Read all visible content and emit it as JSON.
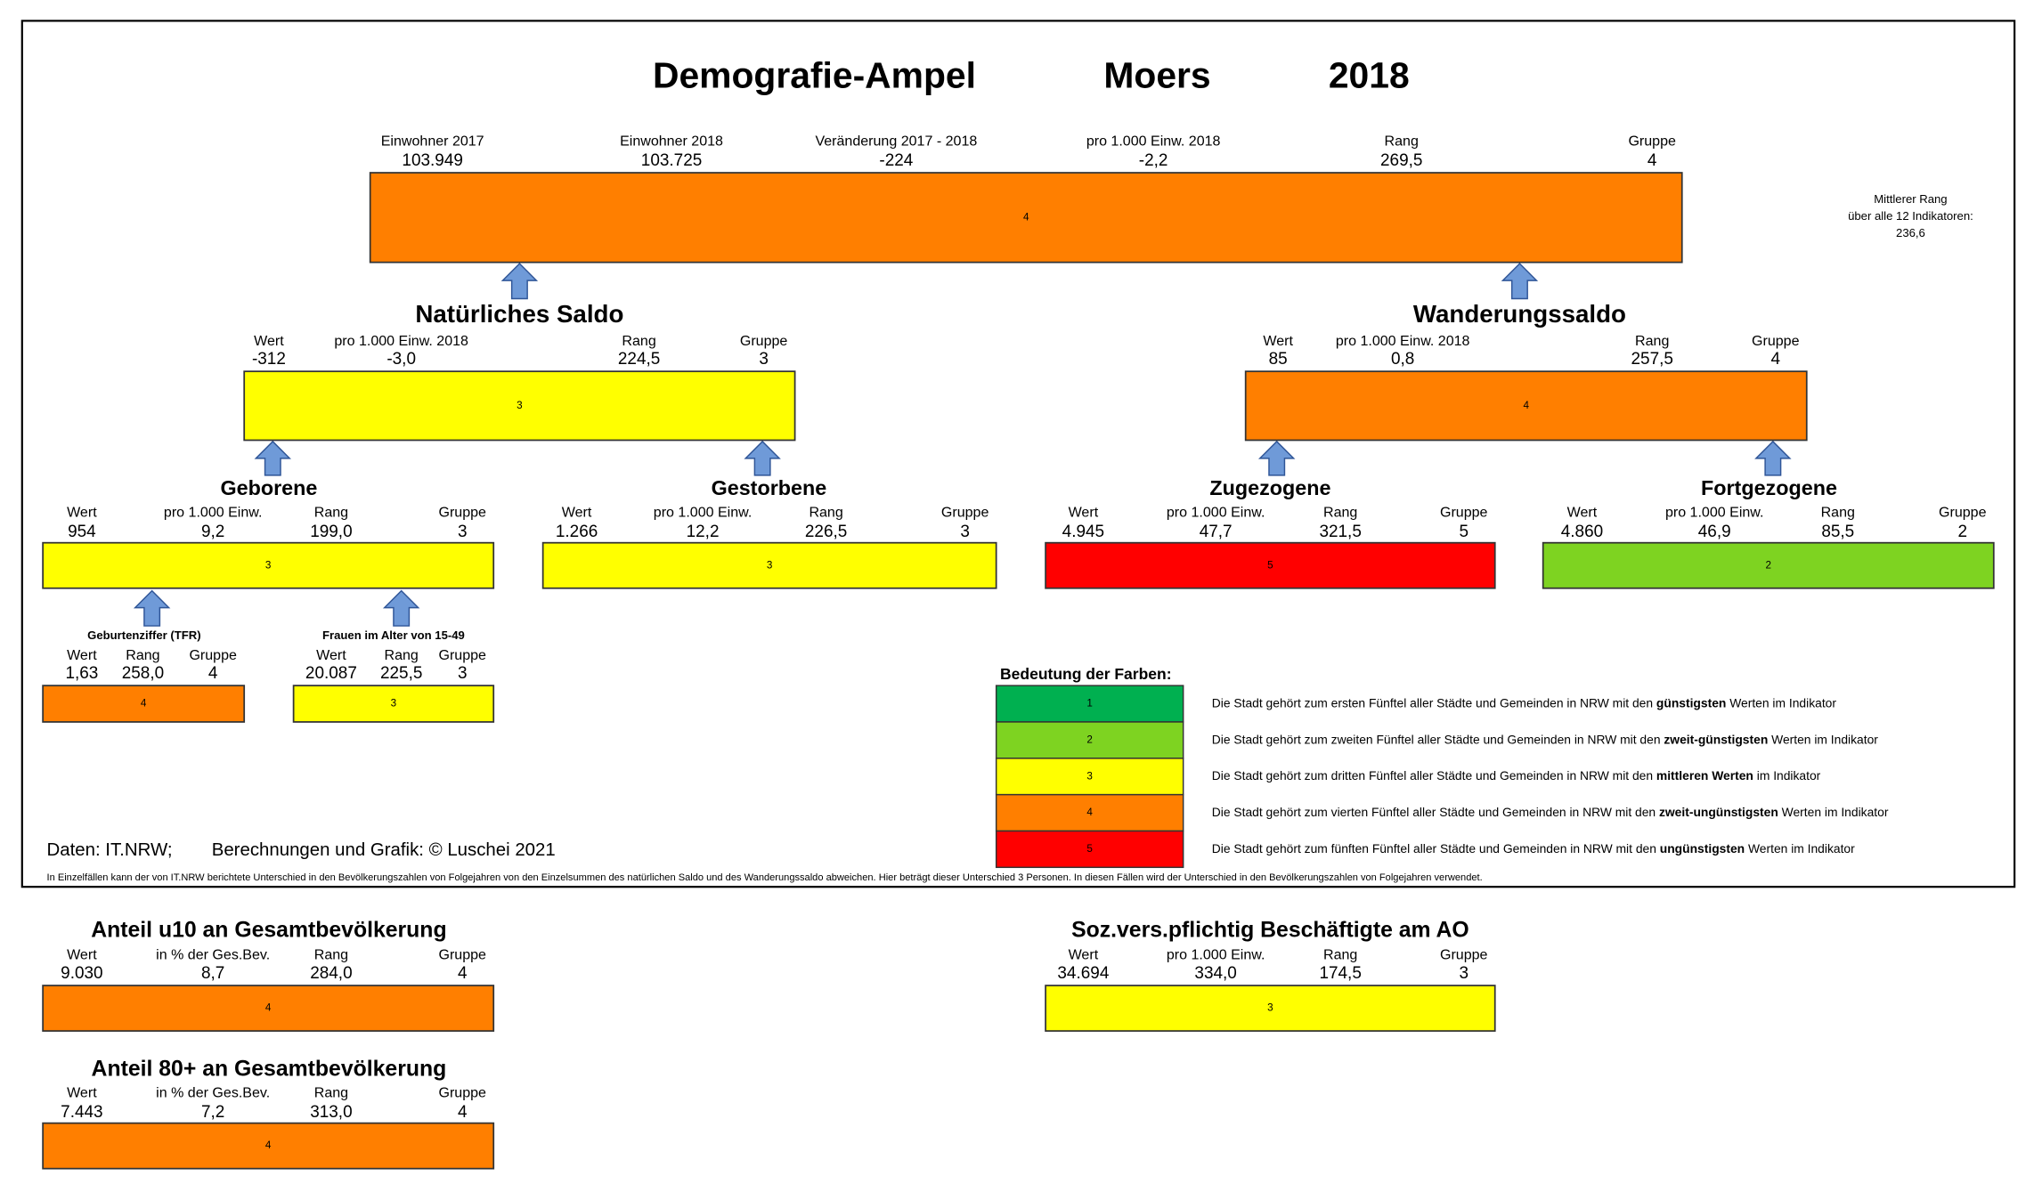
{
  "header": {
    "title": "Demografie-Ampel",
    "city": "Moers",
    "year": "2018"
  },
  "summary": {
    "fields": [
      {
        "label": "Einwohner 2017",
        "value": "103.949"
      },
      {
        "label": "Einwohner 2018",
        "value": "103.725"
      },
      {
        "label": "Veränderung 2017 - 2018",
        "value": "-224",
        "color": "#ff0000"
      },
      {
        "label": "pro 1.000 Einw. 2018",
        "value": "-2,2"
      },
      {
        "label": "Rang",
        "value": "269,5"
      },
      {
        "label": "Gruppe",
        "value": "4"
      }
    ],
    "note": [
      "Mittlerer Rang",
      "über alle 12 Indikatoren:",
      "236,6"
    ]
  },
  "components": [
    {
      "title": "Natürliches Saldo",
      "fields": [
        {
          "label": "Wert",
          "value": "-312",
          "color": "#ff0000"
        },
        {
          "label": "pro 1.000 Einw. 2018",
          "value": "-3,0",
          "color": "#ff0000"
        },
        {
          "label": "Rang",
          "value": "224,5"
        },
        {
          "label": "Gruppe",
          "value": "3"
        }
      ]
    },
    {
      "title": "Wanderungssaldo",
      "fields": [
        {
          "label": "Wert",
          "value": "85"
        },
        {
          "label": "pro 1.000 Einw. 2018",
          "value": "0,8"
        },
        {
          "label": "Rang",
          "value": "257,5"
        },
        {
          "label": "Gruppe",
          "value": "4"
        }
      ]
    }
  ],
  "details": [
    {
      "title": "Geborene",
      "fields": [
        {
          "label": "Wert",
          "value": "954"
        },
        {
          "label": "pro 1.000 Einw.",
          "value": "9,2"
        },
        {
          "label": "Rang",
          "value": "199,0"
        },
        {
          "label": "Gruppe",
          "value": "3"
        }
      ]
    },
    {
      "title": "Gestorbene",
      "fields": [
        {
          "label": "Wert",
          "value": "1.266"
        },
        {
          "label": "pro 1.000 Einw.",
          "value": "12,2"
        },
        {
          "label": "Rang",
          "value": "226,5"
        },
        {
          "label": "Gruppe",
          "value": "3"
        }
      ]
    },
    {
      "title": "Zugezogene",
      "fields": [
        {
          "label": "Wert",
          "value": "4.945"
        },
        {
          "label": "pro 1.000 Einw.",
          "value": "47,7"
        },
        {
          "label": "Rang",
          "value": "321,5"
        },
        {
          "label": "Gruppe",
          "value": "5"
        }
      ]
    },
    {
      "title": "Fortgezogene",
      "fields": [
        {
          "label": "Wert",
          "value": "4.860"
        },
        {
          "label": "pro 1.000 Einw.",
          "value": "46,9"
        },
        {
          "label": "Rang",
          "value": "85,5"
        },
        {
          "label": "Gruppe",
          "value": "2"
        }
      ]
    }
  ],
  "subdetails": [
    {
      "title": "Geburtenziffer (TFR)",
      "fields": [
        {
          "label": "Wert",
          "value": "1,63"
        },
        {
          "label": "Rang",
          "value": "258,0"
        },
        {
          "label": "Gruppe",
          "value": "4"
        }
      ]
    },
    {
      "title": "Frauen im Alter von 15-49",
      "fields": [
        {
          "label": "Wert",
          "value": "20.087"
        },
        {
          "label": "Rang",
          "value": "225,5"
        },
        {
          "label": "Gruppe",
          "value": "3"
        }
      ]
    }
  ],
  "legend": {
    "title": "Bedeutung der Farben:",
    "items": [
      {
        "group": "1",
        "color": "#00b050",
        "pre": "Die Stadt gehört zum ersten Fünftel aller Städte und Gemeinden in NRW mit den ",
        "bold": "günstigsten",
        "post": " Werten im Indikator"
      },
      {
        "group": "2",
        "color": "#7ed321",
        "pre": "Die Stadt gehört zum zweiten Fünftel aller Städte und Gemeinden in NRW mit den ",
        "bold": "zweit-günstigsten",
        "post": " Werten im Indikator"
      },
      {
        "group": "3",
        "color": "#ffff00",
        "pre": "Die Stadt gehört zum dritten Fünftel aller Städte und Gemeinden in NRW mit den ",
        "bold": "mittleren Werten",
        "post": " im Indikator"
      },
      {
        "group": "4",
        "color": "#ff7f00",
        "pre": "Die Stadt gehört zum vierten Fünftel aller Städte und Gemeinden in NRW mit den ",
        "bold": "zweit-ungünstigsten",
        "post": " Werten im Indikator"
      },
      {
        "group": "5",
        "color": "#ff0000",
        "pre": "Die Stadt gehört zum fünften Fünftel aller Städte und Gemeinden in NRW mit den ",
        "bold": "ungünstigsten",
        "post": " Werten im Indikator"
      }
    ]
  },
  "footer": {
    "source": "Daten: IT.NRW;",
    "credit": "Berechnungen und Grafik: © Luschei 2021",
    "note": "In Einzelfällen kann der von IT.NRW berichtete Unterschied in den Bevölkerungszahlen von Folgejahren von den Einzelsummen des natürlichen Saldo und des Wanderungssaldo abweichen. Hier beträgt dieser Unterschied 3 Personen. In diesen Fällen wird der Unterschied in den Bevölkerungszahlen von Folgejahren verwendet."
  },
  "extra": [
    {
      "title": "Anteil u10 an Gesamtbevölkerung",
      "fields": [
        {
          "label": "Wert",
          "value": "9.030"
        },
        {
          "label": "in % der Ges.Bev.",
          "value": "8,7"
        },
        {
          "label": "Rang",
          "value": "284,0"
        },
        {
          "label": "Gruppe",
          "value": "4"
        }
      ]
    },
    {
      "title": "Anteil 80+ an Gesamtbevölkerung",
      "fields": [
        {
          "label": "Wert",
          "value": "7.443"
        },
        {
          "label": "in % der Ges.Bev.",
          "value": "7,2"
        },
        {
          "label": "Rang",
          "value": "313,0"
        },
        {
          "label": "Gruppe",
          "value": "4"
        }
      ]
    },
    {
      "title": "Soz.vers.pflichtig Beschäftigte am AO",
      "fields": [
        {
          "label": "Wert",
          "value": "34.694"
        },
        {
          "label": "pro 1.000 Einw.",
          "value": "334,0"
        },
        {
          "label": "Rang",
          "value": "174,5"
        },
        {
          "label": "Gruppe",
          "value": "3"
        }
      ]
    }
  ]
}
